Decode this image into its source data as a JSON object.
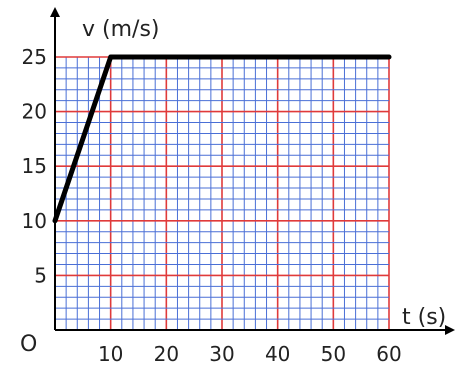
{
  "chart_data": {
    "type": "line",
    "title": "",
    "xlabel": "t (s)",
    "ylabel": "v (m/s)",
    "origin_label": "O",
    "xlim": [
      0,
      60
    ],
    "ylim": [
      0,
      25
    ],
    "x_ticks": [
      "10",
      "20",
      "30",
      "40",
      "50",
      "60"
    ],
    "y_ticks": [
      "5",
      "10",
      "15",
      "20",
      "25"
    ],
    "grid": "on",
    "grid_colors": {
      "minor": "#4a6fd6",
      "major": "#e03a3a"
    },
    "line_color": "#000000",
    "series": [
      {
        "x": [
          0,
          10,
          60
        ],
        "y": [
          10,
          25,
          25
        ]
      }
    ]
  }
}
